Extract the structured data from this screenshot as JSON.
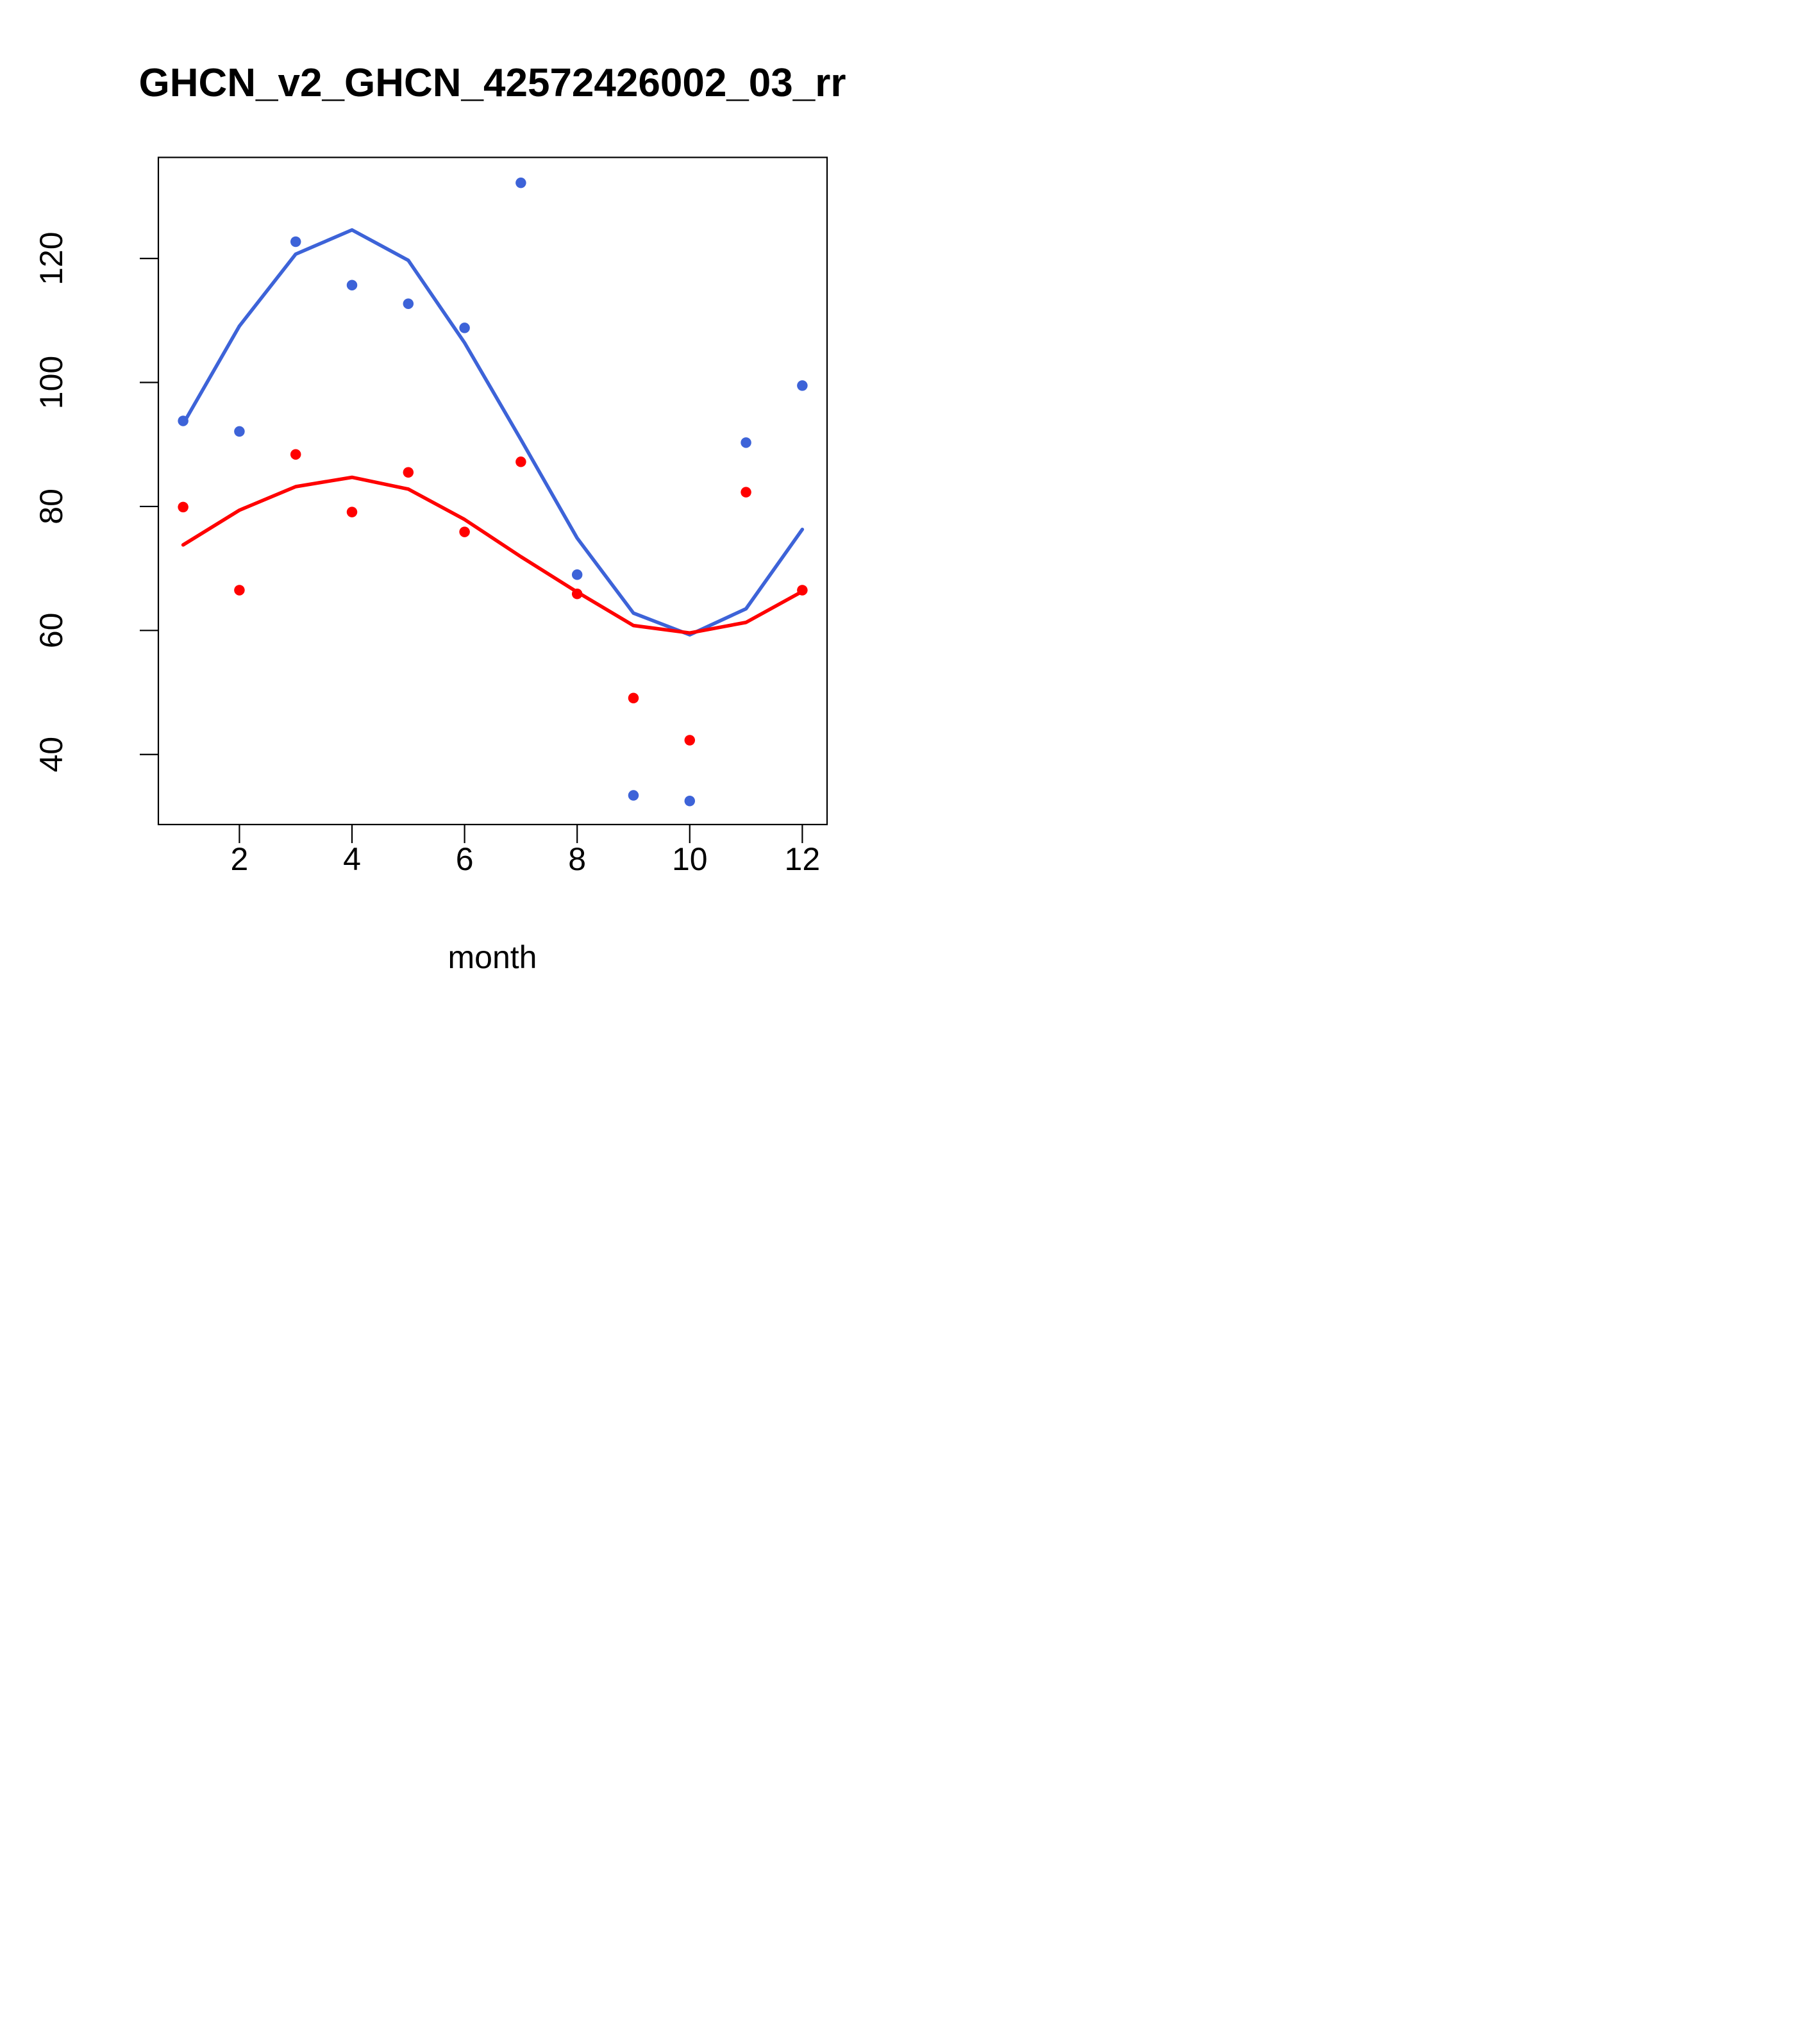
{
  "page": {
    "background": "#ffffff"
  },
  "chart_data": {
    "type": "scatter",
    "title": "GHCN_v2_GHCN_42572426002_03_rr",
    "xlabel": "month",
    "ylabel": "",
    "grid": false,
    "legend": "none",
    "x": [
      1,
      2,
      3,
      4,
      5,
      6,
      7,
      8,
      9,
      10,
      11,
      12
    ],
    "xticks": [
      2,
      4,
      6,
      8,
      10,
      12
    ],
    "yticks": [
      40,
      60,
      80,
      100,
      120
    ],
    "xlim": [
      0.56,
      12.44
    ],
    "ylim": [
      28.7,
      136.3
    ],
    "colors": {
      "blue_series": "#3D63D8",
      "red_series": "#FF0000",
      "axis": "#000000"
    },
    "series": [
      {
        "name": "blue-points",
        "kind": "points",
        "color": "#3D63D8",
        "values": [
          93.8,
          92.1,
          122.7,
          115.7,
          112.7,
          108.8,
          132.2,
          69.0,
          33.4,
          32.5,
          90.3,
          99.5
        ]
      },
      {
        "name": "blue-lowess-line",
        "kind": "line",
        "color": "#3D63D8",
        "values": [
          93.3,
          109.1,
          120.7,
          124.6,
          119.7,
          106.4,
          90.8,
          74.9,
          62.8,
          59.3,
          63.5,
          76.3
        ]
      },
      {
        "name": "red-points",
        "kind": "points",
        "color": "#FF0000",
        "values": [
          79.9,
          66.5,
          88.4,
          79.1,
          85.5,
          75.9,
          87.2,
          65.9,
          49.1,
          42.3,
          82.3,
          66.5
        ]
      },
      {
        "name": "red-lowess-line",
        "kind": "line",
        "color": "#FF0000",
        "values": [
          73.8,
          79.4,
          83.2,
          84.7,
          82.8,
          77.9,
          71.9,
          66.2,
          60.8,
          59.6,
          61.3,
          66.3
        ]
      }
    ]
  }
}
